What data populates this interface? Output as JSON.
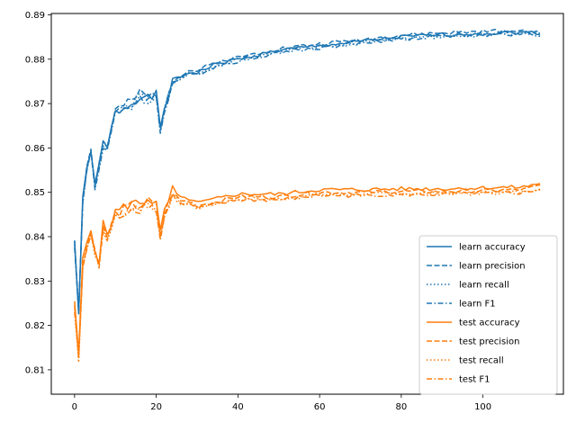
{
  "chart_data": {
    "type": "line",
    "title": "",
    "xlabel": "",
    "ylabel": "",
    "xlim": [
      -5.7,
      119.7
    ],
    "ylim": [
      0.8045,
      0.8903
    ],
    "grid": false,
    "legend_position": "lower-right",
    "x_ticks": [
      0,
      20,
      40,
      60,
      80,
      100
    ],
    "y_ticks": [
      0.81,
      0.82,
      0.83,
      0.84,
      0.85,
      0.86,
      0.87,
      0.88,
      0.89
    ],
    "x_tick_labels": [
      "0",
      "20",
      "40",
      "60",
      "80",
      "100"
    ],
    "y_tick_labels": [
      "0.81",
      "0.82",
      "0.83",
      "0.84",
      "0.85",
      "0.86",
      "0.87",
      "0.88",
      "0.89"
    ],
    "colors": {
      "learn": "#1f77b4",
      "test": "#ff7f0e"
    },
    "keypoints": {
      "x": [
        0,
        1,
        2,
        3,
        4,
        5,
        6,
        7,
        8,
        10,
        12,
        14,
        16,
        18,
        20,
        21,
        22,
        24,
        26,
        28,
        30,
        35,
        40,
        50,
        60,
        70,
        80,
        90,
        100,
        105,
        110,
        114
      ],
      "learn_accuracy": [
        0.839,
        0.823,
        0.848,
        0.855,
        0.86,
        0.851,
        0.856,
        0.861,
        0.86,
        0.868,
        0.869,
        0.87,
        0.872,
        0.871,
        0.872,
        0.864,
        0.869,
        0.875,
        0.876,
        0.877,
        0.877,
        0.879,
        0.88,
        0.882,
        0.883,
        0.884,
        0.885,
        0.8855,
        0.8858,
        0.886,
        0.886,
        0.886
      ],
      "test_accuracy": [
        0.824,
        0.813,
        0.834,
        0.838,
        0.841,
        0.837,
        0.834,
        0.842,
        0.84,
        0.845,
        0.846,
        0.847,
        0.847,
        0.848,
        0.847,
        0.84,
        0.845,
        0.85,
        0.848,
        0.848,
        0.847,
        0.848,
        0.849,
        0.849,
        0.85,
        0.85,
        0.8502,
        0.8502,
        0.8504,
        0.8505,
        0.8506,
        0.8515
      ]
    },
    "series": [
      {
        "name": "learn accuracy",
        "group": "learn",
        "key": "learn_accuracy",
        "style": "solid",
        "offset": 0.0,
        "seed": 1
      },
      {
        "name": "learn precision",
        "group": "learn",
        "key": "learn_accuracy",
        "style": "dashed",
        "offset": 0.0004,
        "seed": 2
      },
      {
        "name": "learn recall",
        "group": "learn",
        "key": "learn_accuracy",
        "style": "dotted",
        "offset": -0.0003,
        "seed": 3
      },
      {
        "name": "learn F1",
        "group": "learn",
        "key": "learn_accuracy",
        "style": "dashdot",
        "offset": -0.0004,
        "seed": 4
      },
      {
        "name": "test accuracy",
        "group": "test",
        "key": "test_accuracy",
        "style": "solid",
        "offset": 0.0006,
        "seed": 5
      },
      {
        "name": "test precision",
        "group": "test",
        "key": "test_accuracy",
        "style": "dashed",
        "offset": 0.0,
        "seed": 6
      },
      {
        "name": "test recall",
        "group": "test",
        "key": "test_accuracy",
        "style": "dotted",
        "offset": -0.0005,
        "seed": 7
      },
      {
        "name": "test F1",
        "group": "test",
        "key": "test_accuracy",
        "style": "dashdot",
        "offset": -0.0007,
        "seed": 8
      }
    ]
  }
}
